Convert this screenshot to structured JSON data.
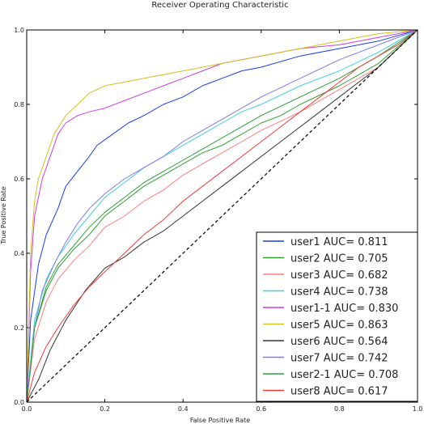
{
  "chart_data": {
    "type": "line",
    "title": "Receiver Operating Characteristic",
    "xlabel": "False Positive Rate",
    "ylabel": "True Positive Rate",
    "xlim": [
      0,
      1
    ],
    "ylim": [
      0,
      1
    ],
    "x_ticks": [
      "0.0",
      "0.2",
      "0.4",
      "0.6",
      "0.8",
      "1.0"
    ],
    "y_ticks": [
      "0.0",
      "0.2",
      "0.4",
      "0.6",
      "0.8",
      "1.0"
    ],
    "grid": false,
    "legend_position": "lower-right",
    "diagonal_reference": {
      "style": "dashed",
      "color": "#000000",
      "from": [
        0,
        0
      ],
      "to": [
        1,
        1
      ]
    },
    "series": [
      {
        "name": "user1 AUC= 0.811",
        "color": "#1a3cf0",
        "points": [
          [
            0,
            0
          ],
          [
            0.01,
            0.22
          ],
          [
            0.03,
            0.37
          ],
          [
            0.05,
            0.45
          ],
          [
            0.08,
            0.52
          ],
          [
            0.1,
            0.58
          ],
          [
            0.13,
            0.62
          ],
          [
            0.16,
            0.66
          ],
          [
            0.18,
            0.69
          ],
          [
            0.22,
            0.72
          ],
          [
            0.26,
            0.75
          ],
          [
            0.3,
            0.77
          ],
          [
            0.35,
            0.8
          ],
          [
            0.4,
            0.82
          ],
          [
            0.45,
            0.85
          ],
          [
            0.5,
            0.87
          ],
          [
            0.55,
            0.89
          ],
          [
            0.6,
            0.9
          ],
          [
            0.7,
            0.93
          ],
          [
            0.8,
            0.95
          ],
          [
            0.9,
            0.97
          ],
          [
            1,
            1
          ]
        ]
      },
      {
        "name": "user2 AUC= 0.705",
        "color": "#2ca02c",
        "points": [
          [
            0,
            0
          ],
          [
            0.02,
            0.2
          ],
          [
            0.05,
            0.3
          ],
          [
            0.08,
            0.36
          ],
          [
            0.12,
            0.41
          ],
          [
            0.16,
            0.45
          ],
          [
            0.2,
            0.5
          ],
          [
            0.25,
            0.54
          ],
          [
            0.3,
            0.58
          ],
          [
            0.35,
            0.61
          ],
          [
            0.4,
            0.64
          ],
          [
            0.45,
            0.67
          ],
          [
            0.5,
            0.69
          ],
          [
            0.55,
            0.72
          ],
          [
            0.6,
            0.75
          ],
          [
            0.65,
            0.77
          ],
          [
            0.7,
            0.8
          ],
          [
            0.8,
            0.85
          ],
          [
            0.9,
            0.91
          ],
          [
            1,
            1
          ]
        ]
      },
      {
        "name": "user3 AUC= 0.682",
        "color": "#ff7f7f",
        "points": [
          [
            0,
            0
          ],
          [
            0.02,
            0.17
          ],
          [
            0.05,
            0.27
          ],
          [
            0.08,
            0.33
          ],
          [
            0.12,
            0.38
          ],
          [
            0.16,
            0.42
          ],
          [
            0.2,
            0.47
          ],
          [
            0.25,
            0.5
          ],
          [
            0.3,
            0.54
          ],
          [
            0.35,
            0.57
          ],
          [
            0.4,
            0.61
          ],
          [
            0.45,
            0.64
          ],
          [
            0.5,
            0.67
          ],
          [
            0.55,
            0.7
          ],
          [
            0.6,
            0.73
          ],
          [
            0.7,
            0.78
          ],
          [
            0.8,
            0.84
          ],
          [
            0.9,
            0.9
          ],
          [
            1,
            1
          ]
        ]
      },
      {
        "name": "user4 AUC= 0.738",
        "color": "#40d0e0",
        "points": [
          [
            0,
            0
          ],
          [
            0.02,
            0.22
          ],
          [
            0.05,
            0.33
          ],
          [
            0.08,
            0.39
          ],
          [
            0.12,
            0.45
          ],
          [
            0.16,
            0.5
          ],
          [
            0.2,
            0.55
          ],
          [
            0.25,
            0.59
          ],
          [
            0.3,
            0.63
          ],
          [
            0.35,
            0.66
          ],
          [
            0.4,
            0.69
          ],
          [
            0.45,
            0.72
          ],
          [
            0.5,
            0.75
          ],
          [
            0.55,
            0.78
          ],
          [
            0.6,
            0.8
          ],
          [
            0.7,
            0.85
          ],
          [
            0.8,
            0.89
          ],
          [
            0.9,
            0.94
          ],
          [
            1,
            1
          ]
        ]
      },
      {
        "name": "user1-1 AUC= 0.830",
        "color": "#c93fe0",
        "points": [
          [
            0,
            0
          ],
          [
            0.01,
            0.35
          ],
          [
            0.02,
            0.5
          ],
          [
            0.04,
            0.6
          ],
          [
            0.06,
            0.66
          ],
          [
            0.08,
            0.72
          ],
          [
            0.1,
            0.75
          ],
          [
            0.13,
            0.77
          ],
          [
            0.16,
            0.78
          ],
          [
            0.2,
            0.79
          ],
          [
            0.25,
            0.81
          ],
          [
            0.3,
            0.83
          ],
          [
            0.35,
            0.85
          ],
          [
            0.4,
            0.87
          ],
          [
            0.45,
            0.89
          ],
          [
            0.5,
            0.91
          ],
          [
            0.55,
            0.92
          ],
          [
            0.6,
            0.93
          ],
          [
            0.7,
            0.95
          ],
          [
            0.8,
            0.96
          ],
          [
            0.9,
            0.98
          ],
          [
            1,
            1
          ]
        ]
      },
      {
        "name": "user5 AUC= 0.863",
        "color": "#d4c21a",
        "points": [
          [
            0,
            0
          ],
          [
            0.01,
            0.4
          ],
          [
            0.02,
            0.54
          ],
          [
            0.03,
            0.6
          ],
          [
            0.05,
            0.66
          ],
          [
            0.07,
            0.72
          ],
          [
            0.1,
            0.77
          ],
          [
            0.13,
            0.8
          ],
          [
            0.16,
            0.83
          ],
          [
            0.2,
            0.85
          ],
          [
            0.25,
            0.86
          ],
          [
            0.3,
            0.87
          ],
          [
            0.35,
            0.88
          ],
          [
            0.4,
            0.89
          ],
          [
            0.5,
            0.91
          ],
          [
            0.6,
            0.93
          ],
          [
            0.7,
            0.95
          ],
          [
            0.8,
            0.97
          ],
          [
            0.9,
            0.99
          ],
          [
            1,
            1
          ]
        ]
      },
      {
        "name": "user6 AUC= 0.564",
        "color": "#333333",
        "points": [
          [
            0,
            0
          ],
          [
            0.03,
            0.06
          ],
          [
            0.06,
            0.14
          ],
          [
            0.1,
            0.22
          ],
          [
            0.15,
            0.3
          ],
          [
            0.2,
            0.36
          ],
          [
            0.25,
            0.39
          ],
          [
            0.3,
            0.43
          ],
          [
            0.35,
            0.46
          ],
          [
            0.4,
            0.5
          ],
          [
            0.45,
            0.54
          ],
          [
            0.5,
            0.58
          ],
          [
            0.55,
            0.62
          ],
          [
            0.6,
            0.66
          ],
          [
            0.65,
            0.7
          ],
          [
            0.7,
            0.74
          ],
          [
            0.75,
            0.78
          ],
          [
            0.8,
            0.82
          ],
          [
            0.85,
            0.86
          ],
          [
            0.9,
            0.9
          ],
          [
            0.95,
            0.95
          ],
          [
            1,
            1
          ]
        ]
      },
      {
        "name": "user7 AUC= 0.742",
        "color": "#7b7bf2",
        "points": [
          [
            0,
            0
          ],
          [
            0.02,
            0.2
          ],
          [
            0.04,
            0.3
          ],
          [
            0.07,
            0.37
          ],
          [
            0.1,
            0.43
          ],
          [
            0.13,
            0.48
          ],
          [
            0.16,
            0.52
          ],
          [
            0.2,
            0.56
          ],
          [
            0.25,
            0.6
          ],
          [
            0.3,
            0.63
          ],
          [
            0.35,
            0.66
          ],
          [
            0.4,
            0.7
          ],
          [
            0.45,
            0.73
          ],
          [
            0.5,
            0.76
          ],
          [
            0.55,
            0.79
          ],
          [
            0.6,
            0.82
          ],
          [
            0.7,
            0.87
          ],
          [
            0.8,
            0.92
          ],
          [
            0.9,
            0.96
          ],
          [
            1,
            1
          ]
        ]
      },
      {
        "name": "user2-1 AUC= 0.708",
        "color": "#2e9e3a",
        "points": [
          [
            0,
            0
          ],
          [
            0.02,
            0.2
          ],
          [
            0.05,
            0.31
          ],
          [
            0.08,
            0.37
          ],
          [
            0.12,
            0.42
          ],
          [
            0.16,
            0.47
          ],
          [
            0.2,
            0.51
          ],
          [
            0.25,
            0.55
          ],
          [
            0.3,
            0.59
          ],
          [
            0.35,
            0.62
          ],
          [
            0.4,
            0.65
          ],
          [
            0.45,
            0.68
          ],
          [
            0.5,
            0.71
          ],
          [
            0.55,
            0.74
          ],
          [
            0.6,
            0.77
          ],
          [
            0.7,
            0.82
          ],
          [
            0.8,
            0.87
          ],
          [
            0.9,
            0.93
          ],
          [
            1,
            1
          ]
        ]
      },
      {
        "name": "user8 AUC= 0.617",
        "color": "#f03a3a",
        "points": [
          [
            0,
            0
          ],
          [
            0.02,
            0.08
          ],
          [
            0.05,
            0.15
          ],
          [
            0.08,
            0.2
          ],
          [
            0.12,
            0.26
          ],
          [
            0.16,
            0.31
          ],
          [
            0.2,
            0.35
          ],
          [
            0.25,
            0.4
          ],
          [
            0.3,
            0.45
          ],
          [
            0.35,
            0.49
          ],
          [
            0.4,
            0.54
          ],
          [
            0.45,
            0.58
          ],
          [
            0.5,
            0.62
          ],
          [
            0.55,
            0.66
          ],
          [
            0.6,
            0.7
          ],
          [
            0.65,
            0.74
          ],
          [
            0.7,
            0.78
          ],
          [
            0.75,
            0.82
          ],
          [
            0.8,
            0.86
          ],
          [
            0.85,
            0.9
          ],
          [
            0.9,
            0.93
          ],
          [
            0.95,
            0.96
          ],
          [
            1,
            1
          ]
        ]
      }
    ]
  }
}
